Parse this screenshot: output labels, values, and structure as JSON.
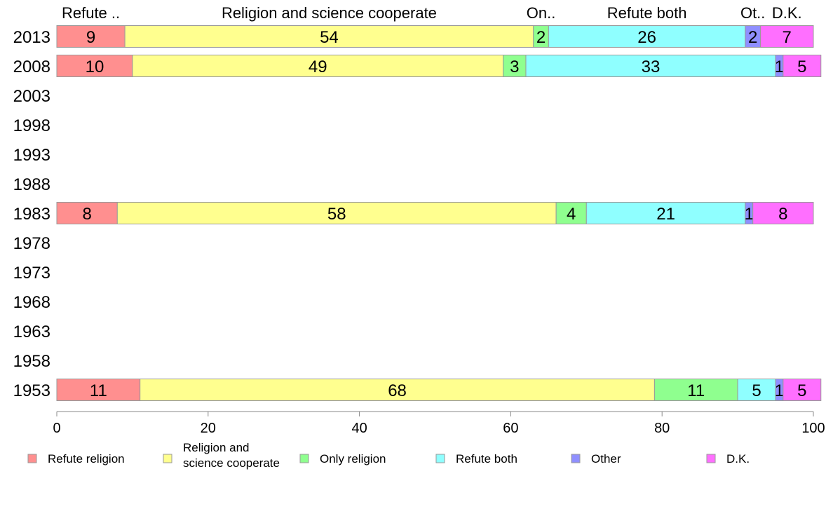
{
  "chart_data": {
    "type": "bar",
    "orientation": "horizontal",
    "stacked": true,
    "categories": [
      "1953",
      "1958",
      "1963",
      "1968",
      "1973",
      "1978",
      "1983",
      "1988",
      "1993",
      "1998",
      "2003",
      "2008",
      "2013"
    ],
    "series": [
      {
        "name": "Refute religion",
        "color": "#ff8f8f",
        "values": [
          11,
          null,
          null,
          null,
          null,
          null,
          8,
          null,
          null,
          null,
          null,
          10,
          9
        ]
      },
      {
        "name": "Religion and science cooperate",
        "color": "#ffff8f",
        "values": [
          68,
          null,
          null,
          null,
          null,
          null,
          58,
          null,
          null,
          null,
          null,
          49,
          54
        ]
      },
      {
        "name": "Only religion",
        "color": "#8fff8f",
        "values": [
          11,
          null,
          null,
          null,
          null,
          null,
          4,
          null,
          null,
          null,
          null,
          3,
          2
        ]
      },
      {
        "name": "Refute both",
        "color": "#8fffff",
        "values": [
          5,
          null,
          null,
          null,
          null,
          null,
          21,
          null,
          null,
          null,
          null,
          33,
          26
        ]
      },
      {
        "name": "Other",
        "color": "#8f8fff",
        "values": [
          1,
          null,
          null,
          null,
          null,
          null,
          1,
          null,
          null,
          null,
          null,
          1,
          2
        ]
      },
      {
        "name": "D.K.",
        "color": "#ff6fff",
        "values": [
          5,
          null,
          null,
          null,
          null,
          null,
          8,
          null,
          null,
          null,
          null,
          5,
          7
        ]
      }
    ],
    "top_labels": [
      "Refute ..",
      "Religion and science cooperate",
      "On..",
      "Refute both",
      "Ot..",
      "D.K."
    ],
    "legend_lines": [
      [
        "Refute religion"
      ],
      [
        "Religion and",
        "science cooperate"
      ],
      [
        "Only religion"
      ],
      [
        "Refute both"
      ],
      [
        "Other"
      ],
      [
        "D.K."
      ]
    ],
    "xlim": [
      0,
      100
    ],
    "xticks": [
      "0",
      "20",
      "40",
      "60",
      "80",
      "100"
    ],
    "legend_position": "bottom",
    "grid": false,
    "segment_border_color": "#999999",
    "axis_color": "#888888"
  }
}
